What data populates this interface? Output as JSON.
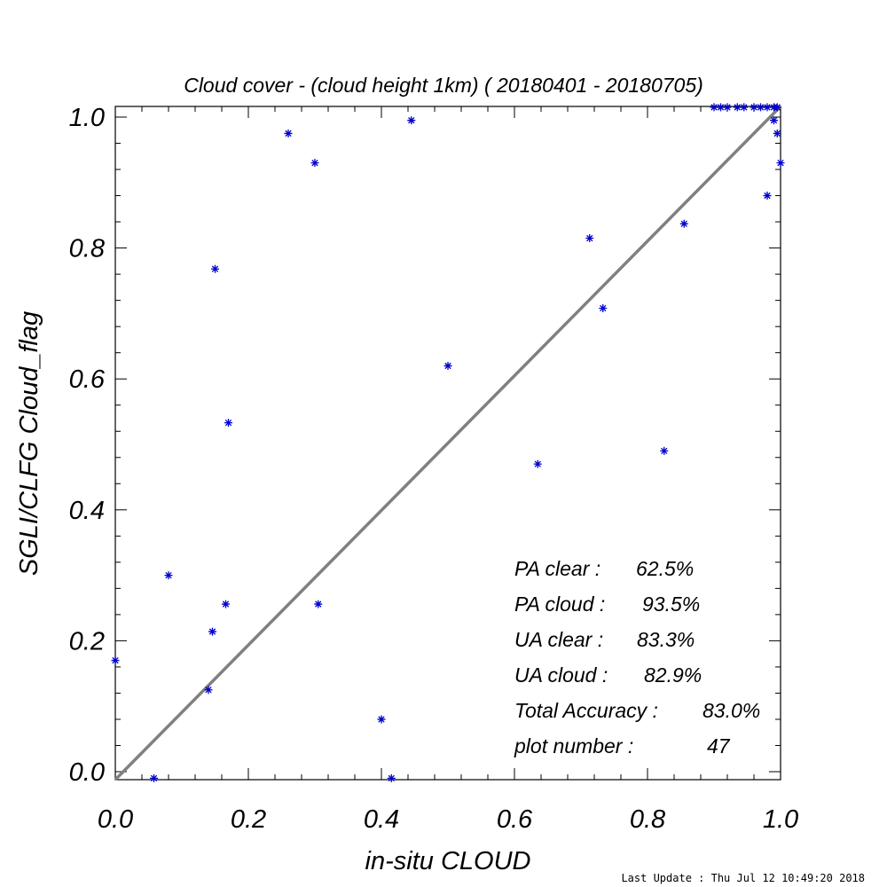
{
  "chart_data": {
    "type": "scatter",
    "title": "Cloud cover - (cloud height 1km) ( 20180401 - 20180705)",
    "xlabel": "in-situ CLOUD",
    "ylabel": "SGLI/CLFG Cloud_flag",
    "xlim": [
      0.0,
      1.0
    ],
    "ylim": [
      0.0,
      1.0
    ],
    "xticks": [
      "0.0",
      "0.2",
      "0.4",
      "0.6",
      "0.8",
      "1.0"
    ],
    "yticks": [
      "0.0",
      "0.2",
      "0.4",
      "0.6",
      "0.8",
      "1.0"
    ],
    "grid": false,
    "reference_line": {
      "from": [
        0.0,
        0.0
      ],
      "to": [
        1.0,
        1.0
      ],
      "color": "#808080"
    },
    "series": [
      {
        "marker": "asterisk",
        "color": "#0000cc",
        "points": [
          [
            0.0,
            0.17
          ],
          [
            0.058,
            -0.01
          ],
          [
            0.08,
            0.3
          ],
          [
            0.14,
            0.125
          ],
          [
            0.146,
            0.214
          ],
          [
            0.15,
            0.768
          ],
          [
            0.166,
            0.256
          ],
          [
            0.17,
            0.533
          ],
          [
            0.26,
            0.975
          ],
          [
            0.3,
            0.93
          ],
          [
            0.305,
            0.256
          ],
          [
            0.4,
            0.08
          ],
          [
            0.415,
            -0.01
          ],
          [
            0.445,
            0.995
          ],
          [
            0.5,
            0.62
          ],
          [
            0.635,
            0.47
          ],
          [
            0.713,
            0.815
          ],
          [
            0.733,
            0.708
          ],
          [
            0.825,
            0.49
          ],
          [
            0.855,
            0.837
          ],
          [
            0.9,
            1.015
          ],
          [
            0.91,
            1.015
          ],
          [
            0.92,
            1.015
          ],
          [
            0.935,
            1.015
          ],
          [
            0.945,
            1.015
          ],
          [
            0.96,
            1.015
          ],
          [
            0.97,
            1.015
          ],
          [
            0.98,
            1.015
          ],
          [
            0.99,
            1.015
          ],
          [
            0.995,
            1.015
          ],
          [
            0.98,
            0.88
          ],
          [
            0.99,
            0.995
          ],
          [
            0.995,
            0.975
          ],
          [
            1.0,
            0.93
          ]
        ]
      }
    ],
    "annotations": [
      {
        "label": "PA clear :",
        "value": "62.5%"
      },
      {
        "label": "PA cloud :",
        "value": "93.5%"
      },
      {
        "label": "UA clear :",
        "value": "83.3%"
      },
      {
        "label": "UA cloud :",
        "value": "82.9%"
      },
      {
        "label": "Total Accuracy :",
        "value": "83.0%"
      },
      {
        "label": "plot number :",
        "value": "47"
      }
    ]
  },
  "footer": "Last Update : Thu Jul 12 10:49:20 2018"
}
